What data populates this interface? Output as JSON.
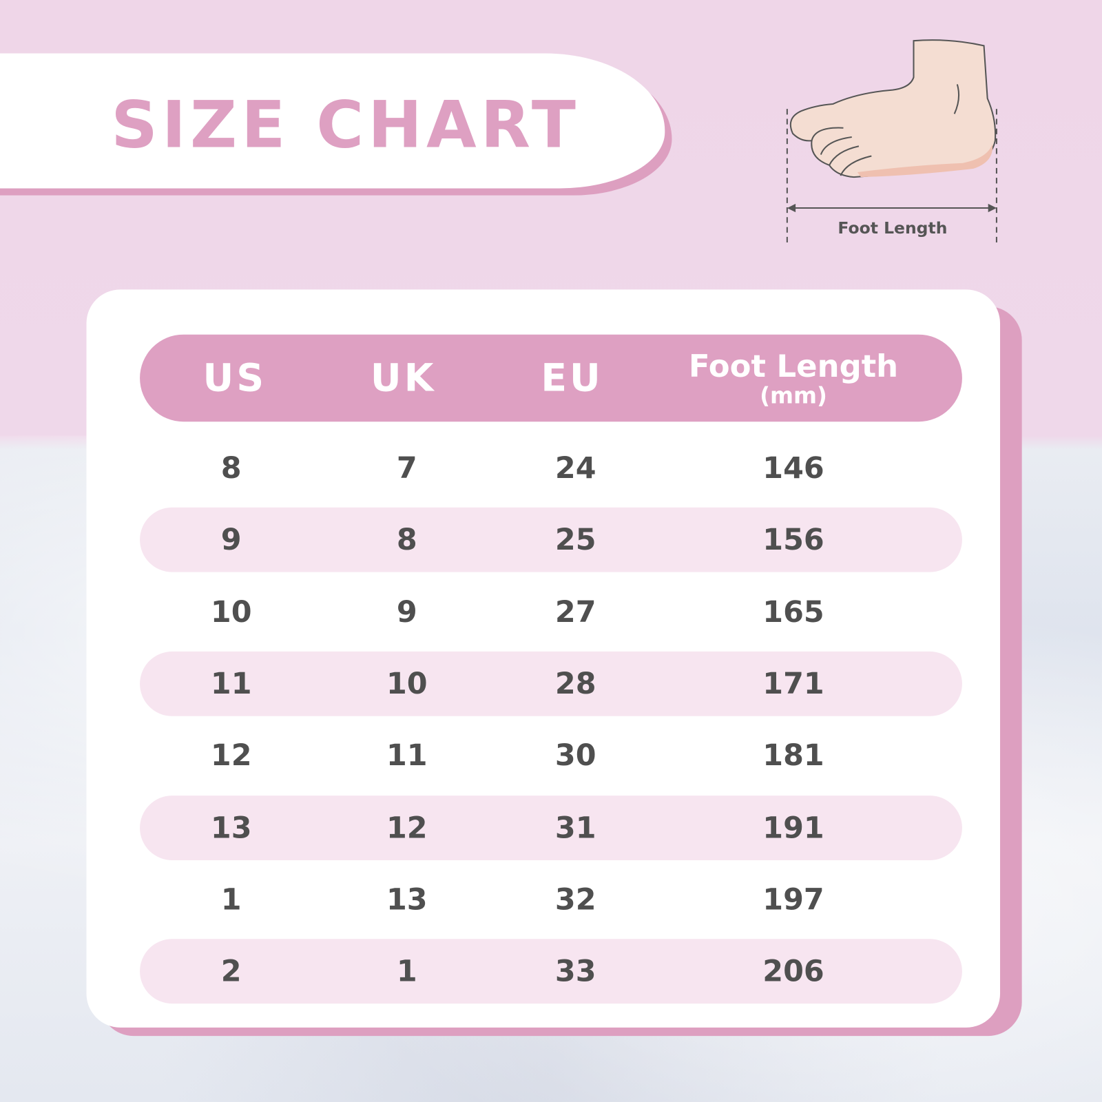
{
  "title": "SIZE CHART",
  "diagram": {
    "label": "Foot Length",
    "icon": "foot-illustration"
  },
  "colors": {
    "accent": "#dea0c2",
    "row_alt": "#f7e5f0",
    "text": "#4f4f4f"
  },
  "table": {
    "headers": [
      "US",
      "UK",
      "EU",
      "Foot Length"
    ],
    "header_unit": "(mm)",
    "rows": [
      [
        "8",
        "7",
        "24",
        "146"
      ],
      [
        "9",
        "8",
        "25",
        "156"
      ],
      [
        "10",
        "9",
        "27",
        "165"
      ],
      [
        "11",
        "10",
        "28",
        "171"
      ],
      [
        "12",
        "11",
        "30",
        "181"
      ],
      [
        "13",
        "12",
        "31",
        "191"
      ],
      [
        "1",
        "13",
        "32",
        "197"
      ],
      [
        "2",
        "1",
        "33",
        "206"
      ]
    ]
  }
}
